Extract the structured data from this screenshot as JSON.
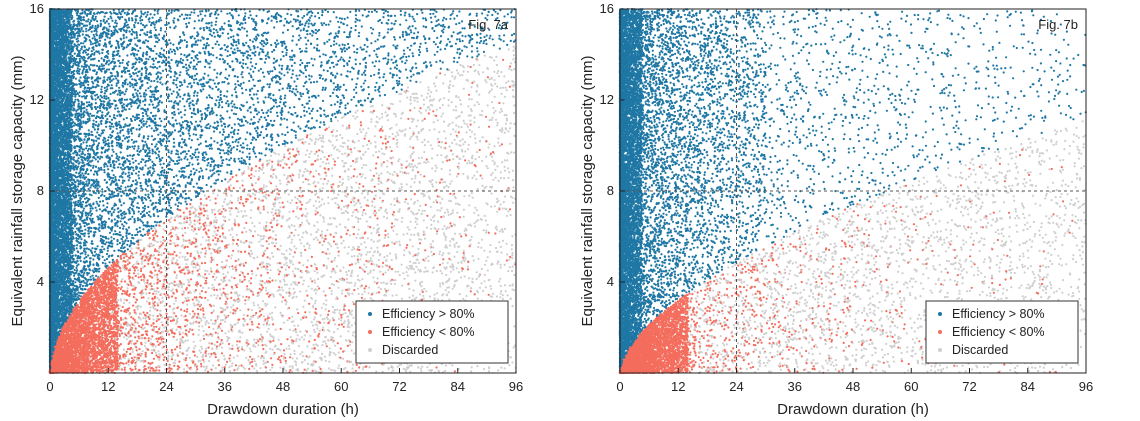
{
  "colors": {
    "efficient": "#1f77a4",
    "inefficient": "#f46d5d",
    "discarded": "#cfcfcf",
    "axis": "#222222",
    "reference_line": "#555555"
  },
  "chart_data": [
    {
      "type": "scatter",
      "figure_label": "Fig. 7a",
      "xlabel": "Drawdown duration (h)",
      "ylabel": "Equivalent rainfall storage capacity (mm)",
      "xlim": [
        0,
        96
      ],
      "ylim": [
        0,
        16
      ],
      "xticks": [
        0,
        12,
        24,
        36,
        48,
        60,
        72,
        84,
        96
      ],
      "yticks": [
        4,
        8,
        12,
        16
      ],
      "reference_lines": {
        "x": 24,
        "y": 8,
        "style": "dashed"
      },
      "grid": false,
      "legend_position": "bottom-right",
      "series": [
        {
          "name": "Efficiency > 80%",
          "color": "#1f77a4",
          "boundary_coefficient": 1.18,
          "boundary_exponent": 0.55,
          "description_density": "dense near x=0, sparser toward right"
        },
        {
          "name": "Efficiency < 80%",
          "color": "#f46d5d"
        },
        {
          "name": "Discarded",
          "color": "#cfcfcf"
        }
      ]
    },
    {
      "type": "scatter",
      "figure_label": "Fig. 7b",
      "xlabel": "Drawdown duration (h)",
      "ylabel": "Equivalent rainfall storage capacity (mm)",
      "xlim": [
        0,
        96
      ],
      "ylim": [
        0,
        16
      ],
      "xticks": [
        0,
        12,
        24,
        36,
        48,
        60,
        72,
        84,
        96
      ],
      "yticks": [
        4,
        8,
        12,
        16
      ],
      "reference_lines": {
        "x": 24,
        "y": 8,
        "style": "dashed"
      },
      "grid": false,
      "legend_position": "bottom-right",
      "series": [
        {
          "name": "Efficiency > 80%",
          "color": "#1f77a4",
          "boundary_coefficient": 0.72,
          "boundary_exponent": 0.6
        },
        {
          "name": "Efficiency < 80%",
          "color": "#f46d5d"
        },
        {
          "name": "Discarded",
          "color": "#cfcfcf"
        }
      ]
    }
  ]
}
